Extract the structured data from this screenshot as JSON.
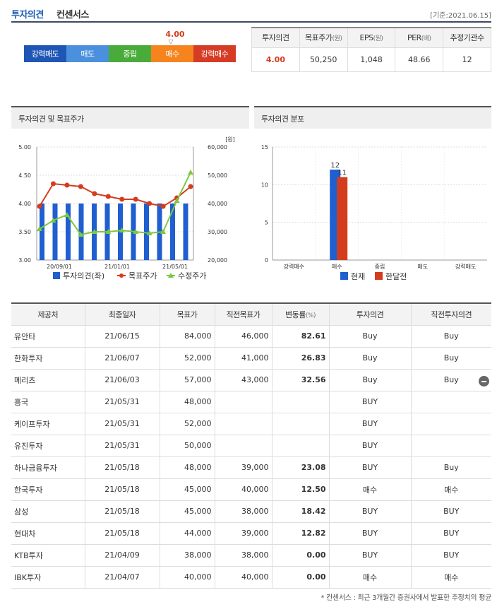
{
  "header": {
    "title_part1": "투자의견",
    "title_part2": "컨센서스",
    "date": "[기준:2021.06.15]"
  },
  "consensus": {
    "value": "4.00",
    "marker": "▽",
    "scale": [
      {
        "label": "강력매도",
        "color": "#1f56b6"
      },
      {
        "label": "매도",
        "color": "#4b90dc"
      },
      {
        "label": "중립",
        "color": "#49ac3a"
      },
      {
        "label": "매수",
        "color": "#f5841f"
      },
      {
        "label": "강력매수",
        "color": "#d63c25"
      }
    ]
  },
  "summary": {
    "headers": [
      "투자의견",
      "목표주가",
      "EPS",
      "PER",
      "추정기관수"
    ],
    "units": [
      "",
      "(원)",
      "(원)",
      "(배)",
      ""
    ],
    "values": [
      "4.00",
      "50,250",
      "1,048",
      "48.66",
      "12"
    ]
  },
  "charts": {
    "left_title": "투자의견 및 목표주가",
    "right_title": "투자의견 분포"
  },
  "chart_data": [
    {
      "type": "bar+line",
      "title": "투자의견 및 목표주가",
      "unit_right": "[원]",
      "y_left_ticks": [
        "5.00",
        "4.50",
        "4.00",
        "3.50",
        "3.00"
      ],
      "y_right_ticks": [
        "60,000",
        "50,000",
        "40,000",
        "30,000",
        "20,000"
      ],
      "x_ticks": [
        "20/09/01",
        "21/01/01",
        "21/05/01"
      ],
      "ylim_left": [
        3.0,
        5.0
      ],
      "ylim_right": [
        20000,
        60000
      ],
      "legend": [
        "투자의견(좌)",
        "목표주가",
        "수정주가"
      ],
      "series": [
        {
          "name": "투자의견(좌)",
          "values": [
            4,
            4,
            4,
            4,
            4,
            4,
            4,
            4,
            4,
            4,
            4,
            4,
            4,
            4,
            4,
            4,
            4,
            4,
            4,
            4,
            4,
            4,
            4,
            4
          ]
        },
        {
          "name": "목표주가",
          "values": [
            39000,
            47000,
            46500,
            46000,
            43500,
            42500,
            41500,
            41500,
            40000,
            39000,
            42000,
            46000
          ]
        },
        {
          "name": "수정주가",
          "values": [
            31000,
            34000,
            36000,
            29000,
            30000,
            30000,
            30500,
            30000,
            29500,
            30000,
            41000,
            51000
          ]
        }
      ]
    },
    {
      "type": "bar",
      "title": "투자의견 분포",
      "categories": [
        "강력매수",
        "매수",
        "중립",
        "매도",
        "강력매도"
      ],
      "y_ticks": [
        "15",
        "10",
        "5",
        "0"
      ],
      "ylim": [
        0,
        15
      ],
      "legend": [
        "현재",
        "한달전"
      ],
      "series": [
        {
          "name": "현재",
          "values": [
            0,
            12,
            0,
            0,
            0
          ]
        },
        {
          "name": "한달전",
          "values": [
            0,
            11,
            0,
            0,
            0
          ]
        }
      ]
    }
  ],
  "table": {
    "headers": [
      "제공처",
      "최종일자",
      "목표가",
      "직전목표가",
      "변동률",
      "투자의견",
      "직전투자의견"
    ],
    "header_unit": "(%)",
    "rows": [
      [
        "유안타",
        "21/06/15",
        "84,000",
        "46,000",
        "82.61",
        "Buy",
        "Buy"
      ],
      [
        "한화투자",
        "21/06/07",
        "52,000",
        "41,000",
        "26.83",
        "Buy",
        "Buy"
      ],
      [
        "메리츠",
        "21/06/03",
        "57,000",
        "43,000",
        "32.56",
        "Buy",
        "Buy"
      ],
      [
        "흥국",
        "21/05/31",
        "48,000",
        "",
        "",
        "BUY",
        ""
      ],
      [
        "케이프투자",
        "21/05/31",
        "52,000",
        "",
        "",
        "BUY",
        ""
      ],
      [
        "유진투자",
        "21/05/31",
        "50,000",
        "",
        "",
        "BUY",
        ""
      ],
      [
        "하나금융투자",
        "21/05/18",
        "48,000",
        "39,000",
        "23.08",
        "BUY",
        "Buy"
      ],
      [
        "한국투자",
        "21/05/18",
        "45,000",
        "40,000",
        "12.50",
        "매수",
        "매수"
      ],
      [
        "삼성",
        "21/05/18",
        "45,000",
        "38,000",
        "18.42",
        "BUY",
        "BUY"
      ],
      [
        "현대차",
        "21/05/18",
        "44,000",
        "39,000",
        "12.82",
        "BUY",
        "BUY"
      ],
      [
        "KTB투자",
        "21/04/09",
        "38,000",
        "38,000",
        "0.00",
        "BUY",
        "BUY"
      ],
      [
        "IBK투자",
        "21/04/07",
        "40,000",
        "40,000",
        "0.00",
        "매수",
        "매수"
      ]
    ]
  },
  "footer": "* 컨센서스 : 최근 3개월간 증권사에서 발표한 추정치의 평균"
}
